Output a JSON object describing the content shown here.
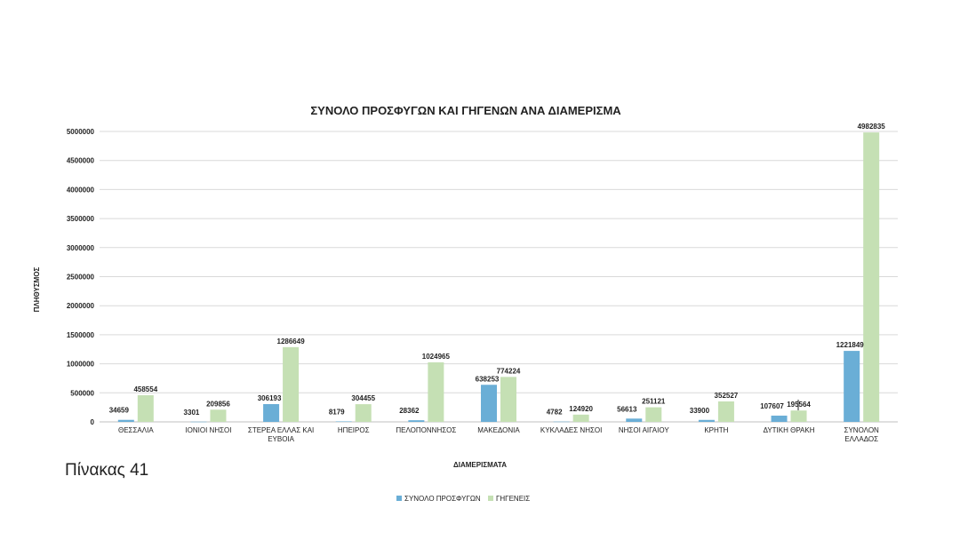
{
  "caption": "Πίνακας 41",
  "chart_data": {
    "type": "bar",
    "title": "ΣΥΝΟΛΟ ΠΡΟΣΦΥΓΩΝ ΚΑΙ ΓΗΓΕΝΩΝ ΑΝΑ ΔΙΑΜΕΡΙΣΜΑ",
    "xlabel": "ΔΙΑΜΕΡΙΣΜΑΤΑ",
    "ylabel": "ΠΛΗΘΥΣΜΟΣ",
    "ylim": [
      0,
      5000000
    ],
    "yticks": [
      0,
      500000,
      1000000,
      1500000,
      2000000,
      2500000,
      3000000,
      3500000,
      4000000,
      4500000,
      5000000
    ],
    "grid": true,
    "legend_position": "bottom",
    "categories": [
      [
        "ΘΕΣΣΑΛΙΑ"
      ],
      [
        "ΙΟΝΙΟΙ ΝΗΣΟΙ"
      ],
      [
        "ΣΤΕΡΕΑ ΕΛΛΑΣ ΚΑΙ",
        "ΕΥΒΟΙΑ"
      ],
      [
        "ΗΠΕΙΡΟΣ"
      ],
      [
        "ΠΕΛΟΠΟΝΝΗΣΟΣ"
      ],
      [
        "ΜΑΚΕΔΟΝΙΑ"
      ],
      [
        "ΚΥΚΛΑΔΕΣ ΝΗΣΟΙ"
      ],
      [
        "ΝΗΣΟΙ ΑΙΓΑΙΟΥ"
      ],
      [
        "ΚΡΗΤΗ"
      ],
      [
        "ΔΥΤΙΚΗ ΘΡΑΚΗ"
      ],
      [
        "ΣΥΝΟΛΟΝ",
        "ΕΛΛΑΔΟΣ"
      ]
    ],
    "series": [
      {
        "name": "ΣΥΝΟΛΟ ΠΡΟΣΦΥΓΩΝ",
        "color": "#6aaed6",
        "values": [
          34659,
          3301,
          306193,
          8179,
          28362,
          638253,
          4782,
          56613,
          33900,
          107607,
          1221849
        ]
      },
      {
        "name": "ΓΗΓΕΝΕΙΣ",
        "color": "#c5e0b4",
        "values": [
          458554,
          209856,
          1286649,
          304455,
          1024965,
          774224,
          124920,
          251121,
          352527,
          195564,
          4982835
        ]
      }
    ]
  }
}
